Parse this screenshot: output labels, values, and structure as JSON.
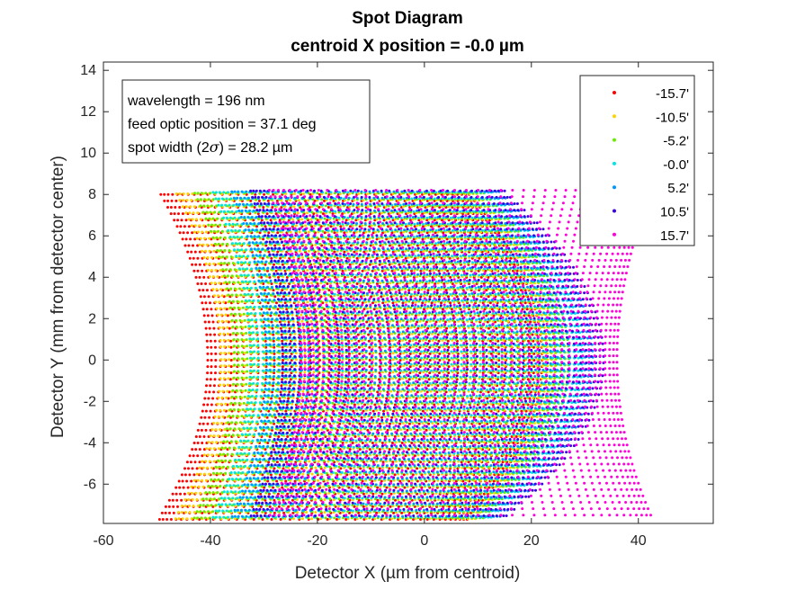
{
  "chart_data": {
    "type": "scatter",
    "title": "Spot Diagram",
    "subtitle": "centroid X position = -0.0 µm",
    "xlabel": "Detector X (µm from centroid)",
    "ylabel": "Detector Y (mm from detector center)",
    "xlim": [
      -60,
      54
    ],
    "ylim": [
      -7.9,
      14.4
    ],
    "xticks": [
      "-60",
      "-40",
      "-20",
      "0",
      "20",
      "40"
    ],
    "yticks": [
      "-6",
      "-4",
      "-2",
      "0",
      "2",
      "4",
      "6",
      "8",
      "10",
      "12",
      "14"
    ],
    "grid": false,
    "legend_position": "top-right",
    "annotation": {
      "line1": "wavelength = 196 nm",
      "line2": "feed optic position = 37.1 deg",
      "line3_prefix": "spot width (2",
      "line3_symbol": "σ",
      "line3_suffix": ") = 28.2 µm"
    },
    "series": [
      {
        "name": "-15.7'",
        "color": "#ff0000",
        "x_min_at_y0": -40.5,
        "x_min_at_edge": -49.5,
        "x_max_at_y0": 22.0,
        "x_max_at_edge": 8.0
      },
      {
        "name": "-10.5'",
        "color": "#ffd200",
        "x_min_at_y0": -38.0,
        "x_min_at_edge": -46.5,
        "x_max_at_y0": 24.5,
        "x_max_at_edge": 9.5
      },
      {
        "name": "-5.2'",
        "color": "#66ee00",
        "x_min_at_y0": -35.5,
        "x_min_at_edge": -43.0,
        "x_max_at_y0": 27.0,
        "x_max_at_edge": 11.0
      },
      {
        "name": "-0.0'",
        "color": "#00e6e6",
        "x_min_at_y0": -32.5,
        "x_min_at_edge": -39.5,
        "x_max_at_y0": 29.5,
        "x_max_at_edge": 12.5
      },
      {
        "name": "5.2'",
        "color": "#0096ff",
        "x_min_at_y0": -29.5,
        "x_min_at_edge": -36.0,
        "x_max_at_y0": 31.5,
        "x_max_at_edge": 14.0
      },
      {
        "name": "10.5'",
        "color": "#3c00e6",
        "x_min_at_y0": -26.5,
        "x_min_at_edge": -32.5,
        "x_max_at_y0": 33.5,
        "x_max_at_edge": 15.0
      },
      {
        "name": "15.7'",
        "color": "#ff00dc",
        "x_min_at_y0": -23.0,
        "x_min_at_edge": -29.0,
        "x_max_at_y0": 36.0,
        "x_max_at_edge": 42.5
      }
    ],
    "y_extent": [
      -7.6,
      8.1
    ]
  }
}
